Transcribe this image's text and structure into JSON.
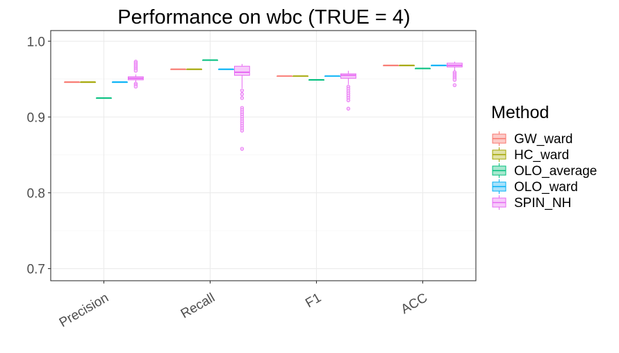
{
  "chart_data": {
    "type": "boxplot",
    "title": "Performance on wbc (TRUE = 4)",
    "xlabel": "",
    "ylabel": "",
    "categories": [
      "Precision",
      "Recall",
      "F1",
      "ACC"
    ],
    "ylim": [
      0.684,
      1.014
    ],
    "yticks": [
      0.7,
      0.8,
      0.9,
      1.0
    ],
    "ytick_labels": [
      "0.7",
      "0.8",
      "0.9",
      "1.0"
    ],
    "grid": true,
    "legend": {
      "title": "Method",
      "position": "right"
    },
    "series": [
      {
        "name": "GW_ward",
        "color": "#F8766D",
        "fill": "#FCCBC8",
        "boxes": [
          {
            "q1": 0.946,
            "median": 0.946,
            "q3": 0.946,
            "lower": 0.946,
            "upper": 0.946,
            "outliers": []
          },
          {
            "q1": 0.963,
            "median": 0.963,
            "q3": 0.963,
            "lower": 0.963,
            "upper": 0.963,
            "outliers": []
          },
          {
            "q1": 0.954,
            "median": 0.954,
            "q3": 0.954,
            "lower": 0.954,
            "upper": 0.954,
            "outliers": []
          },
          {
            "q1": 0.968,
            "median": 0.968,
            "q3": 0.968,
            "lower": 0.968,
            "upper": 0.968,
            "outliers": []
          }
        ]
      },
      {
        "name": "HC_ward",
        "color": "#A3A500",
        "fill": "#E2E2A8",
        "boxes": [
          {
            "q1": 0.946,
            "median": 0.946,
            "q3": 0.946,
            "lower": 0.946,
            "upper": 0.946,
            "outliers": []
          },
          {
            "q1": 0.963,
            "median": 0.963,
            "q3": 0.963,
            "lower": 0.963,
            "upper": 0.963,
            "outliers": []
          },
          {
            "q1": 0.954,
            "median": 0.954,
            "q3": 0.954,
            "lower": 0.954,
            "upper": 0.954,
            "outliers": []
          },
          {
            "q1": 0.968,
            "median": 0.968,
            "q3": 0.968,
            "lower": 0.968,
            "upper": 0.968,
            "outliers": []
          }
        ]
      },
      {
        "name": "OLO_average",
        "color": "#00BF7D",
        "fill": "#A8E8CF",
        "boxes": [
          {
            "q1": 0.925,
            "median": 0.925,
            "q3": 0.925,
            "lower": 0.925,
            "upper": 0.925,
            "outliers": []
          },
          {
            "q1": 0.975,
            "median": 0.975,
            "q3": 0.975,
            "lower": 0.975,
            "upper": 0.975,
            "outliers": []
          },
          {
            "q1": 0.949,
            "median": 0.949,
            "q3": 0.949,
            "lower": 0.949,
            "upper": 0.949,
            "outliers": []
          },
          {
            "q1": 0.964,
            "median": 0.964,
            "q3": 0.964,
            "lower": 0.964,
            "upper": 0.964,
            "outliers": []
          }
        ]
      },
      {
        "name": "OLO_ward",
        "color": "#00B0F6",
        "fill": "#A8E2FB",
        "boxes": [
          {
            "q1": 0.946,
            "median": 0.946,
            "q3": 0.946,
            "lower": 0.946,
            "upper": 0.946,
            "outliers": []
          },
          {
            "q1": 0.963,
            "median": 0.963,
            "q3": 0.963,
            "lower": 0.963,
            "upper": 0.963,
            "outliers": []
          },
          {
            "q1": 0.954,
            "median": 0.954,
            "q3": 0.954,
            "lower": 0.954,
            "upper": 0.954,
            "outliers": []
          },
          {
            "q1": 0.968,
            "median": 0.968,
            "q3": 0.968,
            "lower": 0.968,
            "upper": 0.968,
            "outliers": []
          }
        ]
      },
      {
        "name": "SPIN_NH",
        "color": "#E76BF3",
        "fill": "#F7CBFB",
        "boxes": [
          {
            "q1": 0.949,
            "median": 0.951,
            "q3": 0.953,
            "lower": 0.946,
            "upper": 0.956,
            "outliers": [
              0.973,
              0.971,
              0.969,
              0.967,
              0.965,
              0.963,
              0.961,
              0.944,
              0.942,
              0.94
            ]
          },
          {
            "q1": 0.955,
            "median": 0.959,
            "q3": 0.967,
            "lower": 0.938,
            "upper": 0.97,
            "outliers": [
              0.935,
              0.93,
              0.925,
              0.912,
              0.909,
              0.906,
              0.903,
              0.9,
              0.897,
              0.894,
              0.891,
              0.888,
              0.885,
              0.882,
              0.858
            ]
          },
          {
            "q1": 0.951,
            "median": 0.955,
            "q3": 0.957,
            "lower": 0.943,
            "upper": 0.961,
            "outliers": [
              0.94,
              0.937,
              0.934,
              0.931,
              0.928,
              0.925,
              0.922,
              0.911
            ]
          },
          {
            "q1": 0.966,
            "median": 0.968,
            "q3": 0.971,
            "lower": 0.961,
            "upper": 0.973,
            "outliers": [
              0.959,
              0.957,
              0.955,
              0.953,
              0.951,
              0.949,
              0.942
            ]
          }
        ]
      }
    ]
  }
}
